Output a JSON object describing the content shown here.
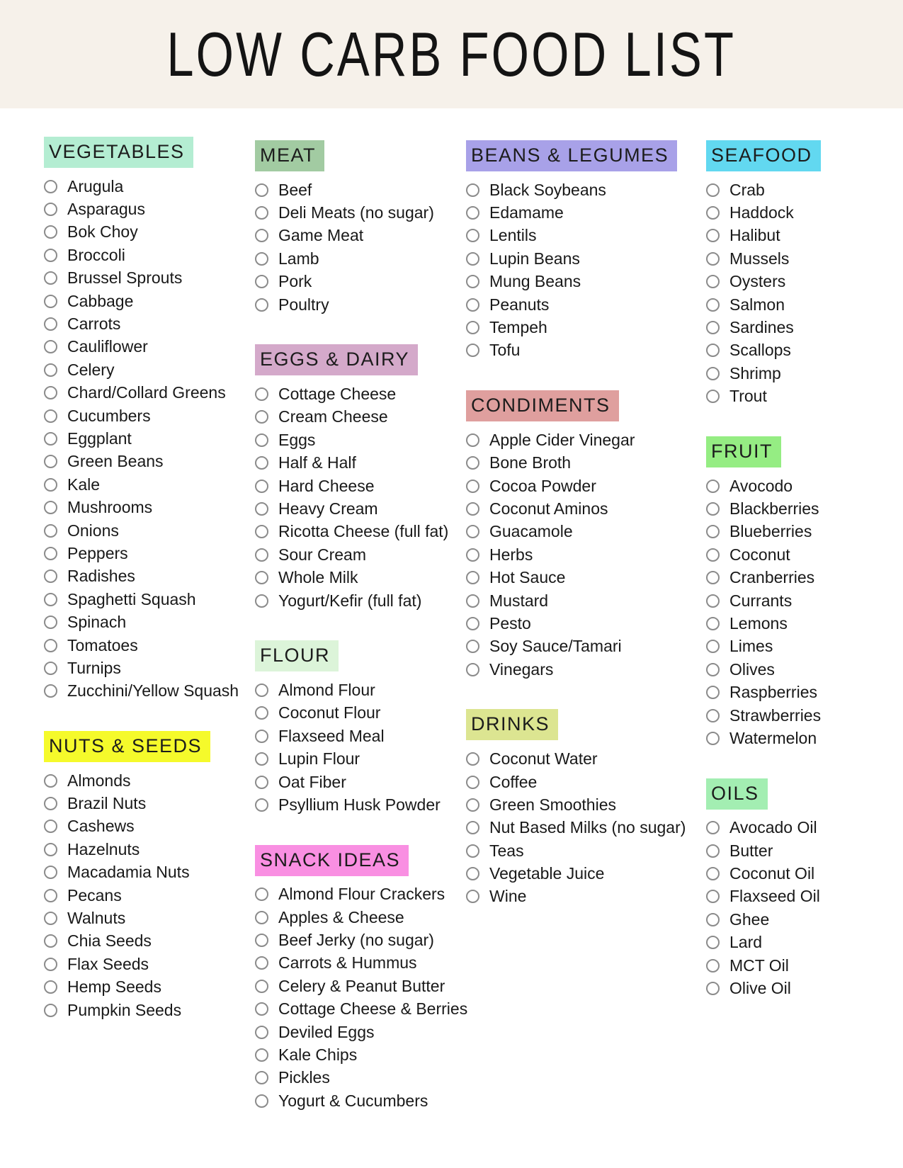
{
  "title": "LOW CARB FOOD LIST",
  "colors": {
    "banner_bg": "#f6f1ea",
    "page_bg": "#ffffff",
    "text": "#191919",
    "circle_outline": "#8b8b8b"
  },
  "columns": [
    {
      "sections": [
        {
          "id": "vegetables",
          "label": "VEGETABLES",
          "highlight": "#b4edd2",
          "items": [
            "Arugula",
            "Asparagus",
            "Bok Choy",
            "Broccoli",
            "Brussel Sprouts",
            "Cabbage",
            "Carrots",
            "Cauliflower",
            "Celery",
            "Chard/Collard Greens",
            "Cucumbers",
            "Eggplant",
            "Green Beans",
            "Kale",
            "Mushrooms",
            "Onions",
            "Peppers",
            "Radishes",
            "Spaghetti Squash",
            "Spinach",
            "Tomatoes",
            "Turnips",
            "Zucchini/Yellow Squash"
          ]
        },
        {
          "id": "nuts-seeds",
          "label": "NUTS & SEEDS",
          "highlight": "#f5fa2b",
          "items": [
            "Almonds",
            "Brazil Nuts",
            "Cashews",
            "Hazelnuts",
            "Macadamia Nuts",
            "Pecans",
            "Walnuts",
            "Chia Seeds",
            "Flax Seeds",
            "Hemp Seeds",
            "Pumpkin Seeds"
          ]
        }
      ]
    },
    {
      "sections": [
        {
          "id": "meat",
          "label": "MEAT",
          "highlight": "#a2cba2",
          "items": [
            "Beef",
            "Deli Meats (no sugar)",
            "Game Meat",
            "Lamb",
            "Pork",
            "Poultry"
          ]
        },
        {
          "id": "eggs-dairy",
          "label": "EGGS & DAIRY",
          "highlight": "#d4a9ca",
          "items": [
            "Cottage Cheese",
            "Cream Cheese",
            "Eggs",
            "Half & Half",
            "Hard Cheese",
            "Heavy Cream",
            "Ricotta Cheese (full fat)",
            "Sour Cream",
            "Whole Milk",
            "Yogurt/Kefir (full fat)"
          ]
        },
        {
          "id": "flour",
          "label": "FLOUR",
          "highlight": "#dcf4d9",
          "items": [
            "Almond Flour",
            "Coconut Flour",
            "Flaxseed Meal",
            "Lupin Flour",
            "Oat Fiber",
            "Psyllium Husk Powder"
          ]
        },
        {
          "id": "snack-ideas",
          "label": "SNACK IDEAS",
          "highlight": "#f98fe2",
          "items": [
            "Almond Flour Crackers",
            "Apples & Cheese",
            "Beef Jerky (no sugar)",
            "Carrots & Hummus",
            "Celery & Peanut Butter",
            "Cottage Cheese & Berries",
            "Deviled Eggs",
            "Kale Chips",
            "Pickles",
            "Yogurt & Cucumbers"
          ]
        }
      ]
    },
    {
      "sections": [
        {
          "id": "beans-legumes",
          "label": "BEANS & LEGUMES",
          "highlight": "#a8a1e8",
          "items": [
            "Black Soybeans",
            "Edamame",
            "Lentils",
            "Lupin Beans",
            "Mung Beans",
            "Peanuts",
            "Tempeh",
            "Tofu"
          ]
        },
        {
          "id": "condiments",
          "label": "CONDIMENTS",
          "highlight": "#df9f9e",
          "items": [
            "Apple Cider Vinegar",
            "Bone Broth",
            "Cocoa Powder",
            "Coconut Aminos",
            "Guacamole",
            "Herbs",
            "Hot Sauce",
            "Mustard",
            "Pesto",
            "Soy Sauce/Tamari",
            "Vinegars"
          ]
        },
        {
          "id": "drinks",
          "label": "DRINKS",
          "highlight": "#dce591",
          "items": [
            "Coconut Water",
            "Coffee",
            "Green Smoothies",
            "Nut Based Milks (no sugar)",
            "Teas",
            "Vegetable Juice",
            "Wine"
          ]
        }
      ]
    },
    {
      "sections": [
        {
          "id": "seafood",
          "label": "SEAFOOD",
          "highlight": "#62d8f0",
          "items": [
            "Crab",
            "Haddock",
            "Halibut",
            "Mussels",
            "Oysters",
            "Salmon",
            "Sardines",
            "Scallops",
            "Shrimp",
            "Trout"
          ]
        },
        {
          "id": "fruit",
          "label": "FRUIT",
          "highlight": "#95ed83",
          "items": [
            "Avocodo",
            "Blackberries",
            "Blueberries",
            "Coconut",
            "Cranberries",
            "Currants",
            "Lemons",
            "Limes",
            "Olives",
            "Raspberries",
            "Strawberries",
            "Watermelon"
          ]
        },
        {
          "id": "oils",
          "label": "OILS",
          "highlight": "#a3eeb2",
          "items": [
            "Avocado Oil",
            "Butter",
            "Coconut Oil",
            "Flaxseed Oil",
            "Ghee",
            "Lard",
            "MCT Oil",
            "Olive Oil"
          ]
        }
      ]
    }
  ]
}
